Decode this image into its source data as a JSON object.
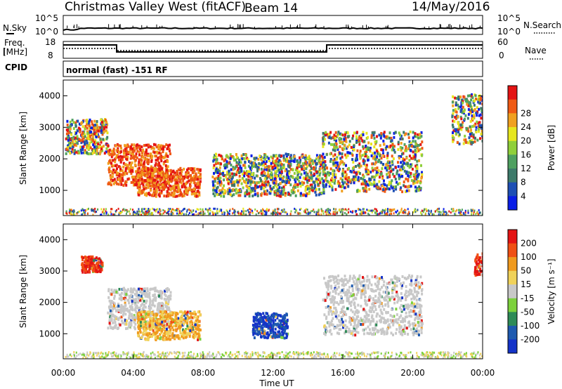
{
  "header": {
    "title": "Christmas Valley West (fitACF)",
    "beam": "Beam 14",
    "date": "14/May/2016"
  },
  "nsky": {
    "label": "N.Sky",
    "ticks": [
      "10^5",
      "10^0"
    ],
    "right_ticks": [
      "10^5",
      "10^0"
    ],
    "right_label": "N.Search"
  },
  "freq": {
    "label_line1": "Freq.",
    "label_line2": "[MHz]",
    "ticks": [
      18,
      8
    ],
    "right_ticks": [
      60,
      0
    ],
    "right_label": "Nave"
  },
  "cpid": {
    "label": "CPID",
    "text": "normal (fast) -151 RF"
  },
  "time_axis": {
    "ticks": [
      "00:00",
      "04:00",
      "08:00",
      "12:00",
      "16:00",
      "20:00",
      "00:00"
    ],
    "label": "Time UT"
  },
  "chart_data": [
    {
      "type": "heatmap",
      "panel": "power",
      "ylabel": "Slant Range [km]",
      "yticks": [
        1000,
        2000,
        3000,
        4000
      ],
      "ylim": [
        200,
        4500
      ],
      "xlim_hours": [
        0,
        24
      ],
      "colorbar": {
        "label": "Power [dB]",
        "ticks": [
          4,
          8,
          12,
          16,
          20,
          24,
          28
        ],
        "colors": [
          "#0a1ee6",
          "#1e4fb4",
          "#3d7a6a",
          "#4ea060",
          "#8fcf3a",
          "#e6e61e",
          "#f0a020",
          "#ef5a14",
          "#e41414"
        ]
      },
      "regions": [
        {
          "t": [
            0.1,
            2.5
          ],
          "r": [
            2200,
            3300
          ],
          "level": "mixed"
        },
        {
          "t": [
            2.5,
            6.1
          ],
          "r": [
            1200,
            2500
          ],
          "level": "high"
        },
        {
          "t": [
            4.2,
            7.8
          ],
          "r": [
            850,
            1750
          ],
          "level": "high"
        },
        {
          "t": [
            8.5,
            14.9
          ],
          "r": [
            850,
            2200
          ],
          "level": "mixed"
        },
        {
          "t": [
            14.8,
            20.5
          ],
          "r": [
            1000,
            2900
          ],
          "level": "mixed"
        },
        {
          "t": [
            22.2,
            24
          ],
          "r": [
            2500,
            4100
          ],
          "level": "mixed"
        }
      ]
    },
    {
      "type": "heatmap",
      "panel": "velocity",
      "ylabel": "Slant Range [km]",
      "yticks": [
        1000,
        2000,
        3000,
        4000
      ],
      "ylim": [
        200,
        4500
      ],
      "xlim_hours": [
        0,
        24
      ],
      "colorbar": {
        "label": "Velocity [m s⁻¹]",
        "ticks": [
          200,
          100,
          50,
          15,
          -15,
          -50,
          -100,
          -200
        ],
        "colors": [
          "#1433c8",
          "#1e5aaf",
          "#2e8b57",
          "#7cd13c",
          "#c8c8c8",
          "#f0d25a",
          "#f09a1e",
          "#f05014",
          "#e41414"
        ]
      },
      "regions": [
        {
          "t": [
            1.0,
            2.2
          ],
          "r": [
            3000,
            3500
          ],
          "level": "red"
        },
        {
          "t": [
            2.5,
            6.1
          ],
          "r": [
            1200,
            2500
          ],
          "level": "grey"
        },
        {
          "t": [
            4.2,
            7.8
          ],
          "r": [
            850,
            1750
          ],
          "level": "orange"
        },
        {
          "t": [
            10.8,
            12.8
          ],
          "r": [
            900,
            1700
          ],
          "level": "blue"
        },
        {
          "t": [
            14.8,
            20.5
          ],
          "r": [
            1000,
            2900
          ],
          "level": "grey"
        },
        {
          "t": [
            23.5,
            24
          ],
          "r": [
            2900,
            3600
          ],
          "level": "red"
        }
      ]
    }
  ]
}
